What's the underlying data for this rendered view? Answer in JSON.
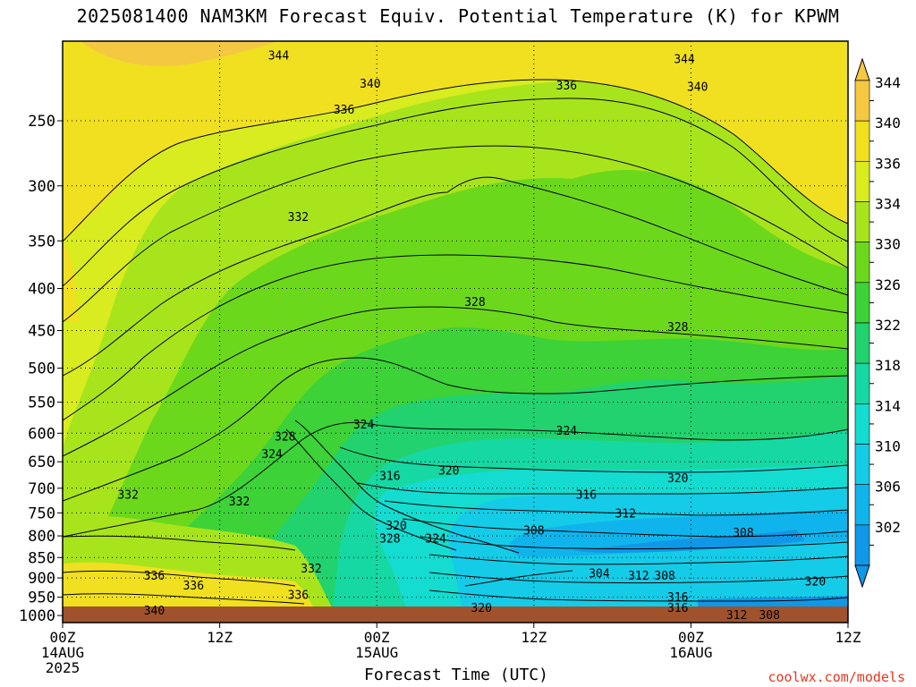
{
  "chart_data": {
    "type": "heatmap",
    "title": "2025081400 NAM3KM Forecast Equiv. Potential Temperature (K) for KPWM",
    "xlabel": "Forecast Time (UTC)",
    "ylabel": "",
    "credit": "coolwx.com/models",
    "y_axis": {
      "scale": "log-pressure",
      "reversed": true,
      "range": [
        1020,
        200
      ],
      "ticks": [
        250,
        300,
        350,
        400,
        450,
        500,
        550,
        600,
        650,
        700,
        750,
        800,
        850,
        900,
        950,
        1000
      ]
    },
    "x_axis": {
      "range_hours": [
        0,
        60
      ],
      "ticks": [
        {
          "hour": 0,
          "lines": [
            "00Z",
            "14AUG",
            "2025"
          ]
        },
        {
          "hour": 12,
          "lines": [
            "12Z"
          ]
        },
        {
          "hour": 24,
          "lines": [
            "00Z",
            "15AUG"
          ]
        },
        {
          "hour": 36,
          "lines": [
            "12Z"
          ]
        },
        {
          "hour": 48,
          "lines": [
            "00Z",
            "16AUG"
          ]
        },
        {
          "hour": 60,
          "lines": [
            "12Z"
          ]
        }
      ]
    },
    "grid": true,
    "colorbar": {
      "position": "right",
      "labels": [
        "344",
        "340",
        "336",
        "334",
        "330",
        "326",
        "322",
        "318",
        "314",
        "310",
        "306",
        "302"
      ],
      "colors": [
        "#f5c842",
        "#f0e020",
        "#d8ec20",
        "#a8e41c",
        "#6cd81c",
        "#3cd238",
        "#22d26e",
        "#16d8a2",
        "#14dcd0",
        "#14cce8",
        "#10b4ec",
        "#1098e8"
      ]
    },
    "contour_labels": [
      {
        "text": "344",
        "hour": 16.5,
        "p": 208
      },
      {
        "text": "344",
        "hour": 47.5,
        "p": 210
      },
      {
        "text": "340",
        "hour": 23.5,
        "p": 225
      },
      {
        "text": "340",
        "hour": 48.5,
        "p": 227
      },
      {
        "text": "336",
        "hour": 21.5,
        "p": 242
      },
      {
        "text": "336",
        "hour": 38.5,
        "p": 226
      },
      {
        "text": "332",
        "hour": 18.0,
        "p": 327
      },
      {
        "text": "328",
        "hour": 31.5,
        "p": 415
      },
      {
        "text": "328",
        "hour": 47.0,
        "p": 445
      },
      {
        "text": "324",
        "hour": 23.0,
        "p": 585
      },
      {
        "text": "324",
        "hour": 38.5,
        "p": 595
      },
      {
        "text": "328",
        "hour": 17.0,
        "p": 605
      },
      {
        "text": "324",
        "hour": 16.0,
        "p": 635
      },
      {
        "text": "320",
        "hour": 29.5,
        "p": 665
      },
      {
        "text": "320",
        "hour": 47.0,
        "p": 680
      },
      {
        "text": "316",
        "hour": 25.0,
        "p": 675
      },
      {
        "text": "316",
        "hour": 40.0,
        "p": 712
      },
      {
        "text": "332",
        "hour": 5.0,
        "p": 712
      },
      {
        "text": "332",
        "hour": 13.5,
        "p": 725
      },
      {
        "text": "320",
        "hour": 25.5,
        "p": 776
      },
      {
        "text": "312",
        "hour": 43.0,
        "p": 750
      },
      {
        "text": "308",
        "hour": 36.0,
        "p": 787
      },
      {
        "text": "308",
        "hour": 52.0,
        "p": 792
      },
      {
        "text": "328",
        "hour": 25.0,
        "p": 805
      },
      {
        "text": "324",
        "hour": 28.5,
        "p": 805
      },
      {
        "text": "332",
        "hour": 19.0,
        "p": 875
      },
      {
        "text": "336",
        "hour": 7.0,
        "p": 893
      },
      {
        "text": "336",
        "hour": 10.0,
        "p": 918
      },
      {
        "text": "336",
        "hour": 18.0,
        "p": 943
      },
      {
        "text": "304",
        "hour": 41.0,
        "p": 888
      },
      {
        "text": "312",
        "hour": 44.0,
        "p": 893
      },
      {
        "text": "308",
        "hour": 46.0,
        "p": 893
      },
      {
        "text": "320",
        "hour": 57.5,
        "p": 908
      },
      {
        "text": "316",
        "hour": 47.0,
        "p": 948
      },
      {
        "text": "316",
        "hour": 47.0,
        "p": 978
      },
      {
        "text": "320",
        "hour": 32.0,
        "p": 977
      },
      {
        "text": "340",
        "hour": 7.0,
        "p": 985
      },
      {
        "text": "312",
        "hour": 51.5,
        "p": 997
      },
      {
        "text": "308",
        "hour": 54.0,
        "p": 997
      }
    ]
  }
}
